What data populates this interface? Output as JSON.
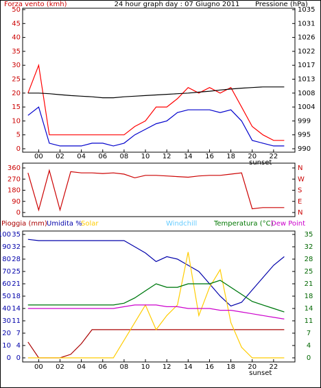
{
  "chart_data": [
    {
      "type": "line",
      "title": "24 hour graph day : 07 Giugno 2011",
      "ylabel": "Forza vento (kmh)",
      "y2label": "Pressione (hPa)",
      "annotation": "sunset",
      "x": [
        -1,
        0,
        1,
        2,
        3,
        4,
        5,
        6,
        7,
        8,
        9,
        10,
        11,
        12,
        13,
        14,
        15,
        16,
        17,
        18,
        19,
        20,
        21,
        22,
        23
      ],
      "xlim": [
        -1.5,
        24
      ],
      "xticks": [
        {
          "value": 0,
          "label": "00"
        },
        {
          "value": 2,
          "label": "02"
        },
        {
          "value": 4,
          "label": "04"
        },
        {
          "value": 6,
          "label": "06"
        },
        {
          "value": 8,
          "label": "08"
        },
        {
          "value": 10,
          "label": "10"
        },
        {
          "value": 12,
          "label": "12"
        },
        {
          "value": 14,
          "label": "14"
        },
        {
          "value": 16,
          "label": "16"
        },
        {
          "value": 18,
          "label": "18"
        },
        {
          "value": 20,
          "label": "20"
        },
        {
          "value": 22,
          "label": "22"
        }
      ],
      "ylim": [
        0,
        50
      ],
      "yticks": [
        0,
        5,
        10,
        15,
        20,
        25,
        30,
        35,
        40,
        45,
        50
      ],
      "ytick_color": "#cc0000",
      "y2lim": [
        990,
        1035
      ],
      "y2ticks": [
        990,
        {
          "value": 994.5,
          "label": "995"
        },
        999,
        {
          "value": 1003.5,
          "label": "1004"
        },
        1008,
        {
          "value": 1012.5,
          "label": "1013"
        },
        1017,
        {
          "value": 1021.5,
          "label": "1022"
        },
        1026,
        {
          "value": 1030.5,
          "label": "1031"
        },
        1035
      ],
      "series": [
        {
          "color": "#ff0000",
          "values": [
            20,
            30,
            5,
            5,
            5,
            5,
            5,
            5,
            5,
            5,
            8,
            10,
            15,
            15,
            18,
            22,
            20,
            22,
            20,
            22,
            15,
            8,
            5,
            3,
            3
          ]
        },
        {
          "color": "#0000cc",
          "values": [
            12,
            15,
            2,
            1,
            1,
            1,
            2,
            2,
            1,
            2,
            5,
            7,
            9,
            10,
            13,
            14,
            14,
            14,
            13,
            14,
            10,
            3,
            2,
            1,
            1
          ]
        },
        {
          "color": "#000000",
          "axis": "y2",
          "values": [
            1008,
            1008,
            1007.8,
            1007.5,
            1007.2,
            1007,
            1006.8,
            1006.5,
            1006.5,
            1006.8,
            1007,
            1007.2,
            1007.4,
            1007.6,
            1007.8,
            1008,
            1008.3,
            1008.6,
            1009,
            1009.3,
            1009.6,
            1009.8,
            1010,
            1010,
            1010
          ]
        }
      ]
    },
    {
      "type": "line",
      "x": [
        -1,
        0,
        1,
        2,
        3,
        4,
        5,
        6,
        7,
        8,
        9,
        10,
        11,
        12,
        13,
        14,
        15,
        16,
        17,
        18,
        19,
        20,
        21,
        22,
        23
      ],
      "xlim": [
        -1.5,
        24
      ],
      "ylim": [
        0,
        360
      ],
      "yticks": [
        0,
        90,
        180,
        270,
        360
      ],
      "ytick_color": "#cc0000",
      "y2lim": [
        0,
        360
      ],
      "y2ticks": [
        {
          "value": 0,
          "label": "N"
        },
        {
          "value": 90,
          "label": "E"
        },
        {
          "value": 180,
          "label": "S"
        },
        {
          "value": 270,
          "label": "W"
        },
        {
          "value": 360,
          "label": "N"
        }
      ],
      "y2tick_color": "#cc0000",
      "series": [
        {
          "color": "#cc0000",
          "values": [
            320,
            20,
            340,
            20,
            330,
            320,
            320,
            315,
            320,
            310,
            280,
            300,
            300,
            295,
            290,
            285,
            295,
            300,
            300,
            310,
            320,
            30,
            40,
            40,
            40
          ]
        }
      ]
    },
    {
      "type": "line",
      "annotation": "sunset",
      "x": [
        -1,
        0,
        1,
        2,
        3,
        4,
        5,
        6,
        7,
        8,
        9,
        10,
        11,
        12,
        13,
        14,
        15,
        16,
        17,
        18,
        19,
        20,
        21,
        22,
        23
      ],
      "xlim": [
        -1.5,
        24
      ],
      "xticks": [
        {
          "value": 0,
          "label": "00"
        },
        {
          "value": 2,
          "label": "02"
        },
        {
          "value": 4,
          "label": "04"
        },
        {
          "value": 6,
          "label": "06"
        },
        {
          "value": 8,
          "label": "08"
        },
        {
          "value": 10,
          "label": "10"
        },
        {
          "value": 12,
          "label": "12"
        },
        {
          "value": 14,
          "label": "14"
        },
        {
          "value": 16,
          "label": "16"
        },
        {
          "value": 18,
          "label": "18"
        },
        {
          "value": 20,
          "label": "20"
        },
        {
          "value": 22,
          "label": "22"
        }
      ],
      "ylim": [
        0,
        100
      ],
      "yticks": [
        0,
        10,
        20,
        30,
        40,
        50,
        60,
        70,
        80,
        90,
        100
      ],
      "ytick_color": "#0000aa",
      "y3lim": [
        0,
        35
      ],
      "y3ticks": [
        0,
        {
          "value": 3.5,
          "label": "4"
        },
        7,
        {
          "value": 10.5,
          "label": "11"
        },
        14,
        {
          "value": 17.5,
          "label": "18"
        },
        21,
        {
          "value": 24.5,
          "label": "25"
        },
        28,
        {
          "value": 31.5,
          "label": "32"
        },
        35
      ],
      "y3tick_color": "#0000aa",
      "y2lim": [
        0,
        35
      ],
      "y2ticks": [
        0,
        {
          "value": 3.5,
          "label": "4"
        },
        7,
        {
          "value": 10.5,
          "label": "11"
        },
        14,
        {
          "value": 17.5,
          "label": "18"
        },
        21,
        {
          "value": 24.5,
          "label": "25"
        },
        28,
        {
          "value": 31.5,
          "label": "32"
        },
        35
      ],
      "y2tick_color": "#006600",
      "series": [
        {
          "name": "Pioggia (mm)",
          "color": "#aa0000",
          "axis": "y3",
          "values": [
            4.5,
            0,
            0,
            0,
            1,
            4,
            8,
            8,
            8,
            8,
            8,
            8,
            8,
            8,
            8,
            8,
            8,
            8,
            8,
            8,
            8,
            8,
            8,
            8,
            8
          ]
        },
        {
          "name": "Umidita %",
          "color": "#0000aa",
          "values": [
            96,
            95,
            95,
            95,
            95,
            95,
            95,
            95,
            95,
            95,
            90,
            85,
            78,
            82,
            80,
            75,
            70,
            60,
            50,
            42,
            45,
            55,
            65,
            75,
            82
          ]
        },
        {
          "name": "Solar",
          "color": "#ffcc00",
          "axis": "y2",
          "values": [
            0,
            0,
            0,
            0,
            0,
            0,
            0,
            0,
            0,
            5,
            10,
            15,
            8,
            12,
            15,
            30,
            12,
            20,
            25,
            10,
            3,
            0,
            0,
            0,
            0
          ]
        },
        {
          "name": "Windchill",
          "color": "#66ccff",
          "axis": "y2",
          "values": [
            15,
            15,
            15,
            15,
            15,
            15,
            15,
            15,
            15,
            15.5,
            17,
            19,
            21,
            20,
            20,
            21,
            21,
            21,
            22,
            20,
            18,
            16,
            15,
            14,
            13
          ]
        },
        {
          "name": "Temperatura (°C)",
          "color": "#007700",
          "axis": "y2",
          "values": [
            15,
            15,
            15,
            15,
            15,
            15,
            15,
            15,
            15,
            15.5,
            17,
            19,
            21,
            20,
            20,
            21,
            21,
            21,
            22,
            20,
            18,
            16,
            15,
            14,
            13
          ]
        },
        {
          "name": "Dew Point",
          "color": "#cc00cc",
          "axis": "y2",
          "values": [
            14,
            14,
            14,
            14,
            14,
            14,
            14,
            14,
            14,
            14.5,
            15,
            15,
            15,
            14.5,
            14.5,
            14,
            14,
            14,
            13.5,
            13.5,
            13,
            12.5,
            12,
            11.5,
            11
          ]
        }
      ]
    }
  ]
}
